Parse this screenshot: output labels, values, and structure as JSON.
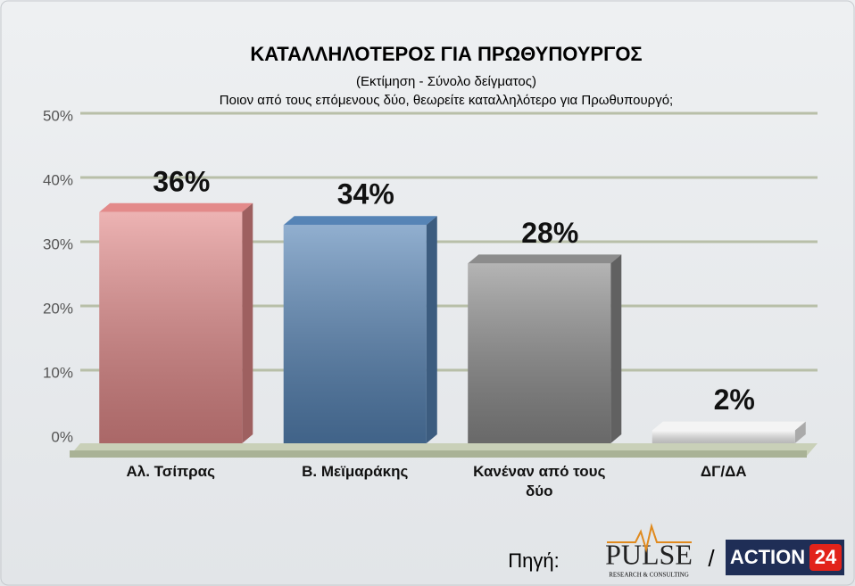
{
  "chart_data": {
    "type": "bar",
    "title": "ΚΑΤΑΛΛΗΛΟΤΕΡΟΣ ΓΙΑ ΠΡΩΘΥΠΟΥΡΓΟΣ",
    "subtitle": [
      "(Εκτίμηση - Σύνολο δείγματος)",
      "Ποιον από τους επόμενους δύο, θεωρείτε καταλληλότερο για Πρωθυπουργό;"
    ],
    "categories": [
      "Αλ. Τσίπρας",
      "Β. Μεϊμαράκης",
      "Κανέναν από τους δύο",
      "ΔΓ/ΔΑ"
    ],
    "values": [
      36,
      34,
      28,
      2
    ],
    "value_labels": [
      "36%",
      "34%",
      "28%",
      "2%"
    ],
    "colors": [
      "#e38a8a",
      "#5684b6",
      "#8c8c8c",
      "#f4f4f4"
    ],
    "ylim": [
      0,
      50
    ],
    "yticks": [
      {
        "value": 0,
        "label": "0%"
      },
      {
        "value": 10,
        "label": "10%"
      },
      {
        "value": 20,
        "label": "20%"
      },
      {
        "value": 30,
        "label": "30%"
      },
      {
        "value": 40,
        "label": "40%"
      },
      {
        "value": 50,
        "label": "50%"
      }
    ],
    "grid": true
  },
  "source": {
    "label": "Πηγή:",
    "logo1": "PULSE",
    "logo1_tagline": "RESEARCH & CONSULTING",
    "separator": "/",
    "logo2": "ACTION",
    "logo2_number": "24"
  }
}
